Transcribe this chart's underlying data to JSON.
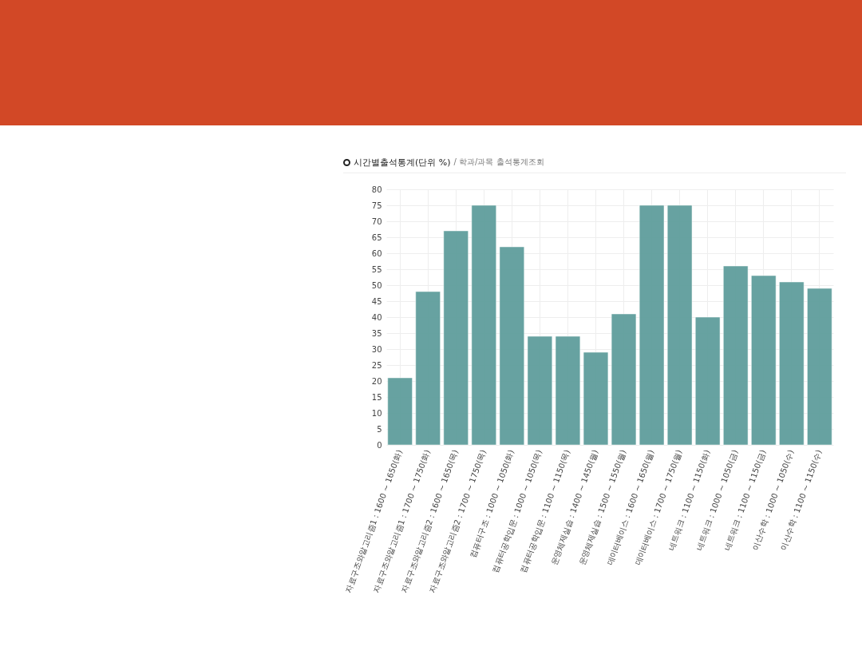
{
  "chart_data": {
    "type": "bar",
    "title": "시간별출석통계(단위 %)",
    "subtitle": "/ 학과/과목 출석통계조회",
    "categories": [
      "자료구조와알고리즘1 : 1600 ~ 1650(화)",
      "자료구조와알고리즘1 : 1700 ~ 1750(화)",
      "자료구조와알고리즘2 : 1600 ~ 1650(목)",
      "자료구조와알고리즘2 : 1700 ~ 1750(목)",
      "컴퓨터구조 : 1000 ~ 1050(화)",
      "컴퓨터공학입문 : 1000 ~ 1050(목)",
      "컴퓨터공학입문 : 1100 ~ 1150(목)",
      "운영체제실습 : 1400 ~ 1450(월)",
      "운영체제실습 : 1500 ~ 1550(월)",
      "데이터베이스 : 1600 ~ 1650(월)",
      "데이터베이스 : 1700 ~ 1750(월)",
      "네트워크 : 1100 ~ 1150(화)",
      "네트워크 : 1000 ~ 1050(금)",
      "네트워크 : 1100 ~ 1150(금)",
      "이산수학 : 1000 ~ 1050(수)",
      "이산수학 : 1100 ~ 1150(수)"
    ],
    "values": [
      21,
      48,
      67,
      75,
      62,
      34,
      34,
      29,
      41,
      75,
      75,
      40,
      56,
      53,
      51,
      49
    ],
    "color": "#5f9e9c",
    "ylim": [
      0,
      80
    ],
    "yticks": [
      0,
      5,
      10,
      15,
      20,
      25,
      30,
      35,
      40,
      45,
      50,
      55,
      60,
      65,
      70,
      75,
      80
    ],
    "grid": true
  }
}
